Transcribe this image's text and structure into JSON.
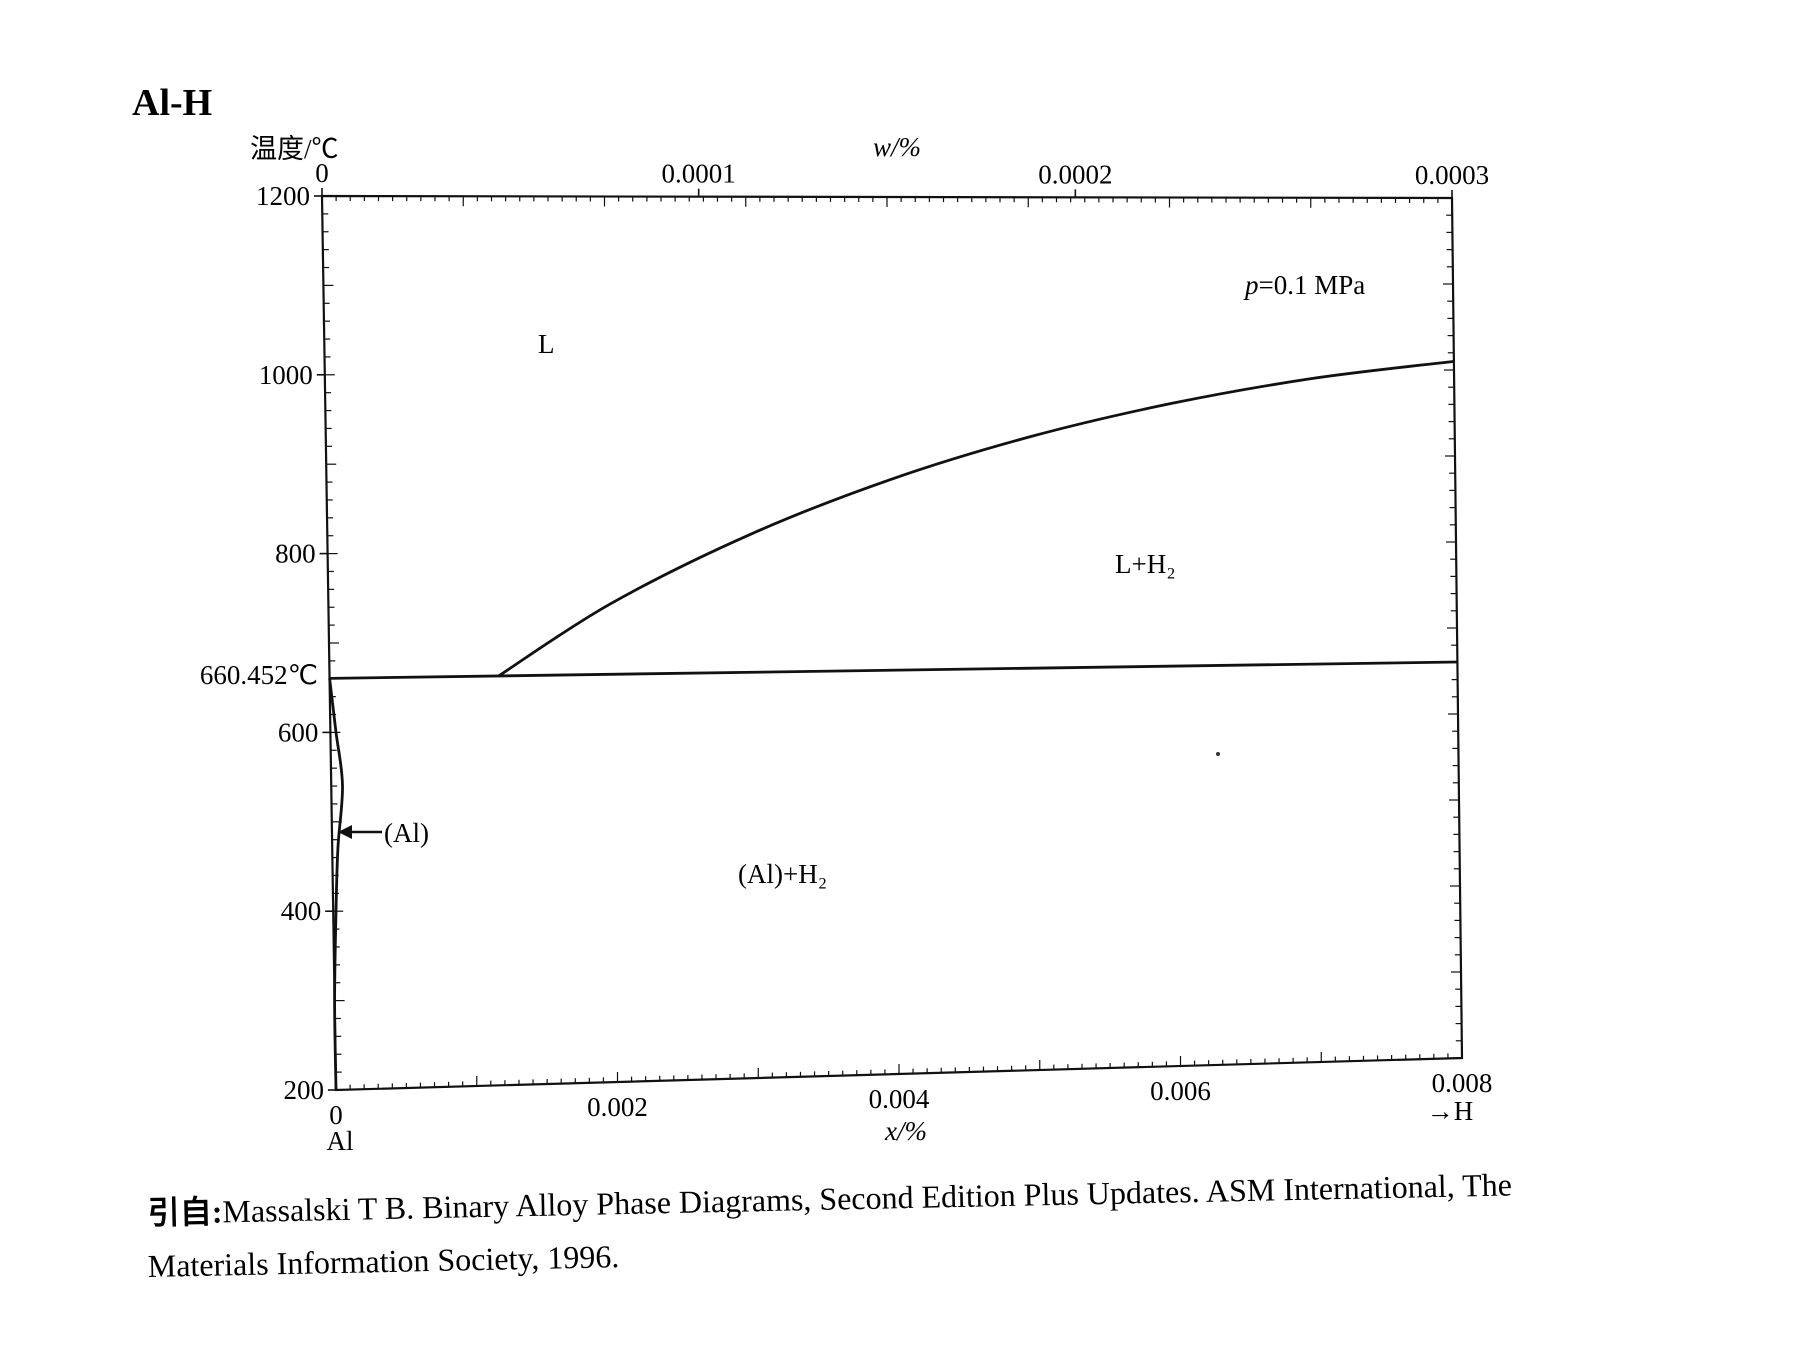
{
  "chart_data": {
    "type": "line",
    "title": "Al-H",
    "ylabel": "温度/℃",
    "xlabel_bottom": "x/%",
    "xlabel_top": "w/%",
    "y_ticks": [
      "1200",
      "1000",
      "800",
      "600",
      "400",
      "200"
    ],
    "y_tick_values": [
      1200,
      1000,
      800,
      600,
      400,
      200
    ],
    "x_ticks_bottom": [
      "0",
      "0.002",
      "0.004",
      "0.006",
      "0.008"
    ],
    "x_tick_values_bottom": [
      0,
      0.002,
      0.004,
      0.006,
      0.008
    ],
    "x_ticks_top": [
      "0",
      "0.0001",
      "0.0002",
      "0.0003"
    ],
    "x_tick_values_top": [
      0,
      0.0001,
      0.0002,
      0.0003
    ],
    "ylim": [
      200,
      1200
    ],
    "xlim": [
      0,
      0.008
    ],
    "grid": false,
    "special_temperature_label": "660.452℃",
    "special_temperature": 660.452,
    "left_component": "Al",
    "right_component": "→H",
    "pressure_note": "p=0.1 MPa",
    "region_labels": {
      "liquid": "L",
      "liquid_h2": "L+H₂",
      "solid_h2": "(Al)+H₂",
      "solid": "(Al)"
    },
    "series": [
      {
        "name": "liquidus",
        "points": [
          [
            0.0012,
            660.452
          ],
          [
            0.002,
            740
          ],
          [
            0.003,
            817
          ],
          [
            0.004,
            878
          ],
          [
            0.005,
            926
          ],
          [
            0.006,
            963
          ],
          [
            0.007,
            991
          ],
          [
            0.008,
            1010
          ]
        ]
      },
      {
        "name": "eutectic",
        "points": [
          [
            0,
            660.452
          ],
          [
            0.008,
            660.452
          ]
        ]
      },
      {
        "name": "solvus",
        "points": [
          [
            0,
            660.452
          ],
          [
            4e-05,
            600
          ],
          [
            8e-05,
            540
          ],
          [
            4e-05,
            470
          ],
          [
            2e-05,
            400
          ],
          [
            0,
            300
          ],
          [
            0,
            200
          ]
        ]
      }
    ]
  },
  "citation": {
    "line1_prefix": "引自:",
    "line1": "Massalski T B. Binary Alloy Phase Diagrams, Second Edition Plus Updates. ASM International, The",
    "line2": "Materials Information Society, 1996."
  }
}
